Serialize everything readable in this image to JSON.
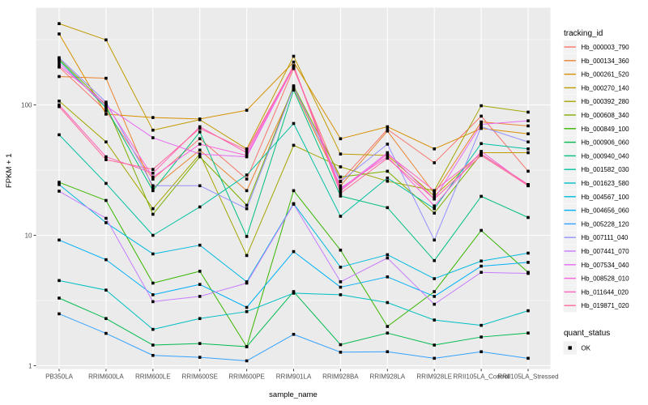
{
  "chart_data": {
    "type": "line",
    "title": "",
    "xlabel": "sample_name",
    "ylabel": "FPKM + 1",
    "y_scale": "log10",
    "y_ticks": [
      1,
      10,
      100
    ],
    "y_minor_ticks": [
      3.162,
      31.62,
      316.2
    ],
    "ylim": [
      0.95,
      550
    ],
    "grid": true,
    "legend_position": "right",
    "point_color": "#000000",
    "point_shape": "square",
    "categories": [
      "PB350LA",
      "RRIM600LA",
      "RRIM600LE",
      "RRIM600SE",
      "RRIM600PE",
      "RRIM901LA",
      "RRIM928BA",
      "RRIM928LA",
      "RRIM928LE",
      "RRII105LA_Control",
      "RRII105LA_Stressed"
    ],
    "series": [
      {
        "name": "Hb_000003_790",
        "color": "#F8766D",
        "values": [
          195,
          90,
          27,
          55,
          27,
          190,
          26,
          65,
          36,
          82,
          31
        ]
      },
      {
        "name": "Hb_000134_360",
        "color": "#EA8331",
        "values": [
          165,
          160,
          23,
          45,
          22,
          134,
          24,
          63,
          21,
          74,
          69
        ]
      },
      {
        "name": "Hb_000261_520",
        "color": "#D89000",
        "values": [
          350,
          85,
          80,
          78,
          91,
          213,
          55,
          68,
          46,
          66,
          60
        ]
      },
      {
        "name": "Hb_000270_140",
        "color": "#C09B00",
        "values": [
          420,
          315,
          64,
          77,
          46,
          236,
          42,
          41,
          20,
          43,
          43
        ]
      },
      {
        "name": "Hb_000392_280",
        "color": "#A3A500",
        "values": [
          107,
          52,
          16,
          42,
          7.0,
          49,
          33.5,
          26,
          22,
          98.5,
          88
        ]
      },
      {
        "name": "Hb_000608_340",
        "color": "#7CAE00",
        "values": [
          225,
          100,
          14.5,
          40,
          17,
          140,
          28,
          31,
          14.8,
          42,
          24.5
        ]
      },
      {
        "name": "Hb_000849_100",
        "color": "#39B600",
        "values": [
          25.5,
          18.5,
          4.3,
          5.3,
          1.4,
          22,
          7.7,
          2.0,
          3.7,
          10.9,
          5.2
        ]
      },
      {
        "name": "Hb_000906_060",
        "color": "#00BB4E",
        "values": [
          3.3,
          2.3,
          1.44,
          1.48,
          1.4,
          3.7,
          1.45,
          1.78,
          1.44,
          1.66,
          1.78
        ]
      },
      {
        "name": "Hb_000940_040",
        "color": "#00BF7D",
        "values": [
          220,
          95,
          22,
          62,
          9.8,
          130,
          20,
          16.3,
          6.4,
          19.9,
          13.7
        ]
      },
      {
        "name": "Hb_001582_030",
        "color": "#00C1A3",
        "values": [
          59,
          25,
          10,
          16.5,
          29,
          72,
          14,
          27.5,
          16,
          50.5,
          46
        ]
      },
      {
        "name": "Hb_001623_580",
        "color": "#00BFC4",
        "values": [
          4.5,
          3.8,
          1.9,
          2.3,
          2.6,
          3.6,
          3.5,
          3.05,
          2.24,
          2.04,
          2.64
        ]
      },
      {
        "name": "Hb_004567_100",
        "color": "#00BAE0",
        "values": [
          24.5,
          12.5,
          7.2,
          8.4,
          4.4,
          17.5,
          5.7,
          7.1,
          4.65,
          6.35,
          7.3
        ]
      },
      {
        "name": "Hb_004656_060",
        "color": "#00B0F6",
        "values": [
          9.2,
          6.5,
          3.5,
          4.2,
          2.8,
          7.5,
          4.0,
          4.8,
          3.4,
          5.8,
          6.2
        ]
      },
      {
        "name": "Hb_005228_120",
        "color": "#35A2FF",
        "values": [
          2.5,
          1.77,
          1.2,
          1.16,
          1.09,
          1.74,
          1.27,
          1.28,
          1.14,
          1.28,
          1.14
        ]
      },
      {
        "name": "Hb_007111_040",
        "color": "#9590FF",
        "values": [
          230,
          105,
          24,
          24,
          16,
          137,
          25.8,
          50,
          9.2,
          68,
          52
        ]
      },
      {
        "name": "Hb_007441_070",
        "color": "#C77CFF",
        "values": [
          21.8,
          13.5,
          3.1,
          3.4,
          4.3,
          17.3,
          4.4,
          6.7,
          2.96,
          5.2,
          5.1
        ]
      },
      {
        "name": "Hb_007534_040",
        "color": "#E76BF3",
        "values": [
          210,
          98,
          56,
          42,
          40,
          195,
          22.5,
          43,
          19,
          71,
          75.5
        ]
      },
      {
        "name": "Hb_008528_010",
        "color": "#FA62DB",
        "values": [
          200,
          102,
          28,
          50,
          41,
          196,
          23,
          40,
          16.8,
          44,
          24
        ]
      },
      {
        "name": "Hb_011644_020",
        "color": "#FF62BC",
        "values": [
          100,
          40,
          30,
          68,
          43,
          200,
          22,
          42,
          22,
          42,
          24.5
        ]
      },
      {
        "name": "Hb_019871_020",
        "color": "#FF6A98",
        "values": [
          97,
          38,
          32,
          66,
          45,
          198,
          21,
          39,
          19,
          41,
          24
        ]
      }
    ]
  },
  "legend": {
    "tracking_title": "tracking_id",
    "quant_title": "quant_status",
    "quant_items": [
      {
        "label": "OK",
        "color": "#000000"
      }
    ]
  },
  "axes": {
    "y_tick_labels": [
      "1",
      "10",
      "100"
    ]
  },
  "colors": {
    "panel_bg": "#EBEBEB",
    "grid": "#FFFFFF",
    "legend_key_bg": "#F2F2F2",
    "tick_text": "#4D4D4D",
    "tick_mark": "#333333"
  }
}
